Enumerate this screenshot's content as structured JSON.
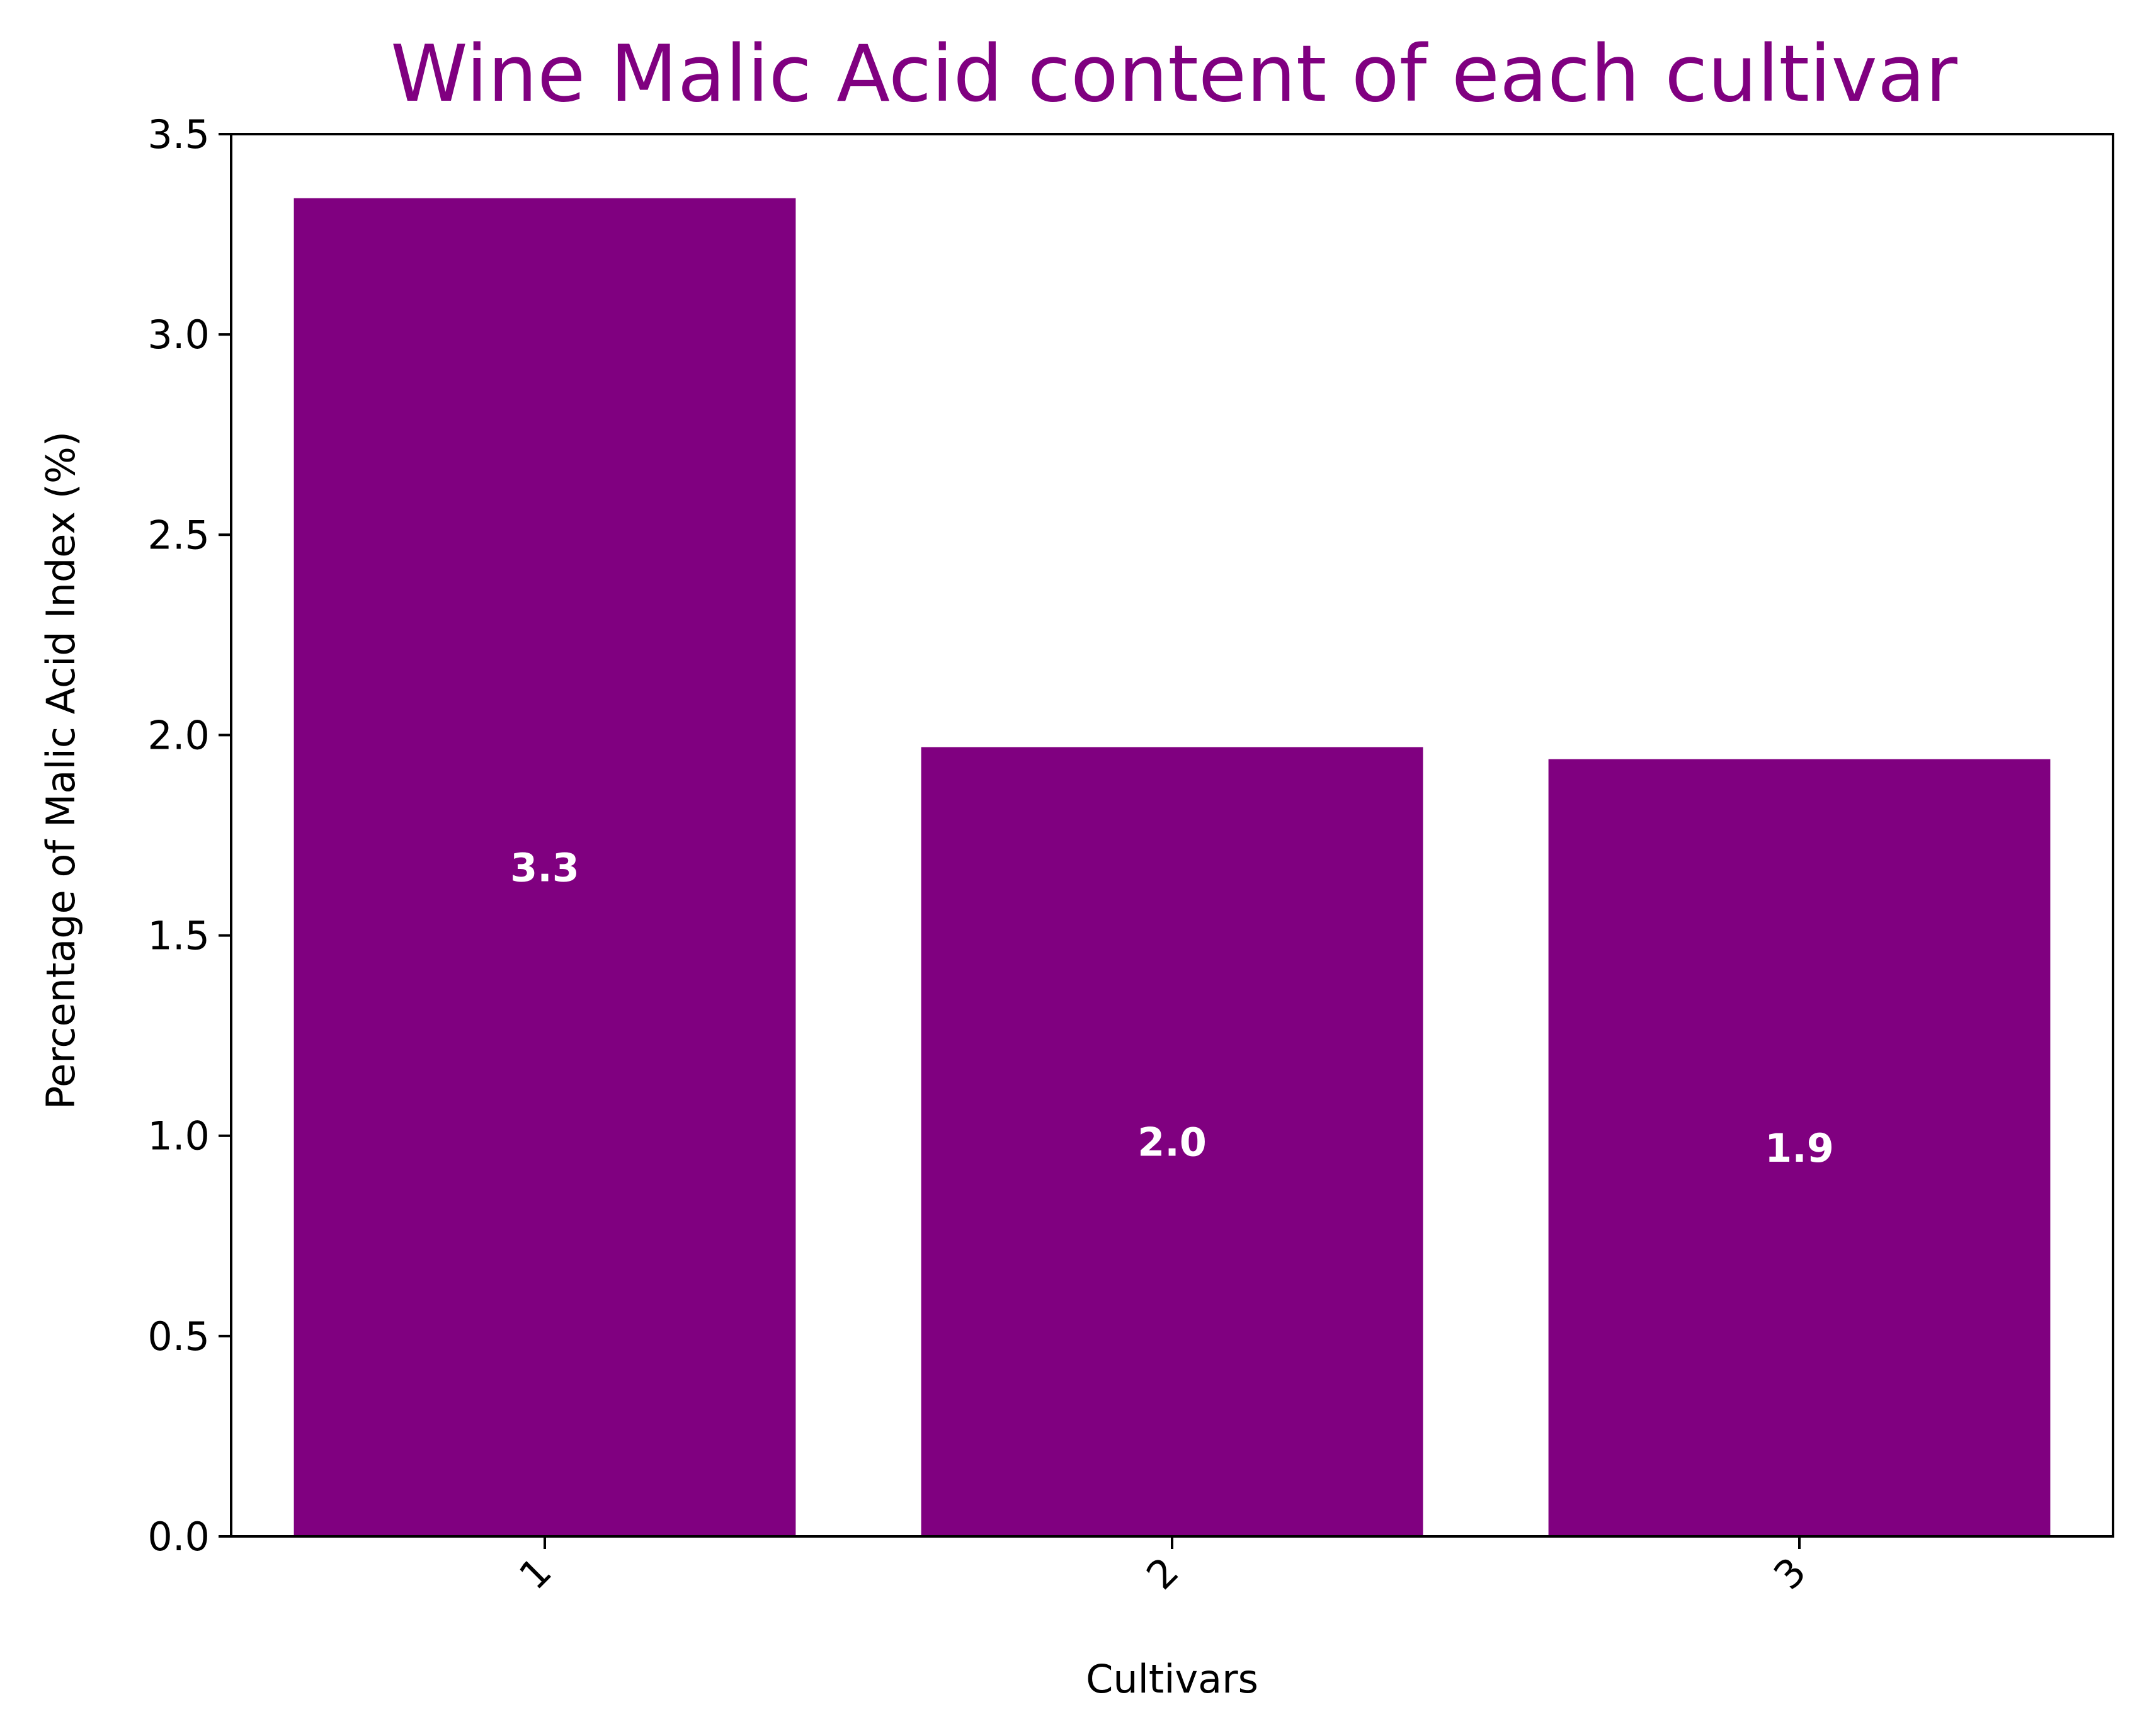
{
  "chart_data": {
    "type": "bar",
    "title": "Wine Malic Acid content of each cultivar",
    "xlabel": "Cultivars",
    "ylabel": "Percentage of Malic Acid Index (%)",
    "categories": [
      "1",
      "2",
      "3"
    ],
    "values": [
      3.34,
      1.97,
      1.94
    ],
    "data_labels": [
      "3.3",
      "2.0",
      "1.9"
    ],
    "ylim": [
      0,
      3.5
    ],
    "yticks": [
      0.0,
      0.5,
      1.0,
      1.5,
      2.0,
      2.5,
      3.0,
      3.5
    ],
    "ytick_labels": [
      "0.0",
      "0.5",
      "1.0",
      "1.5",
      "2.0",
      "2.5",
      "3.0",
      "3.5"
    ],
    "grid": false,
    "legend": "none",
    "colors": {
      "bar": "#800080",
      "title": "#800080",
      "data_label": "#ffffff",
      "axis": "#000000"
    }
  }
}
